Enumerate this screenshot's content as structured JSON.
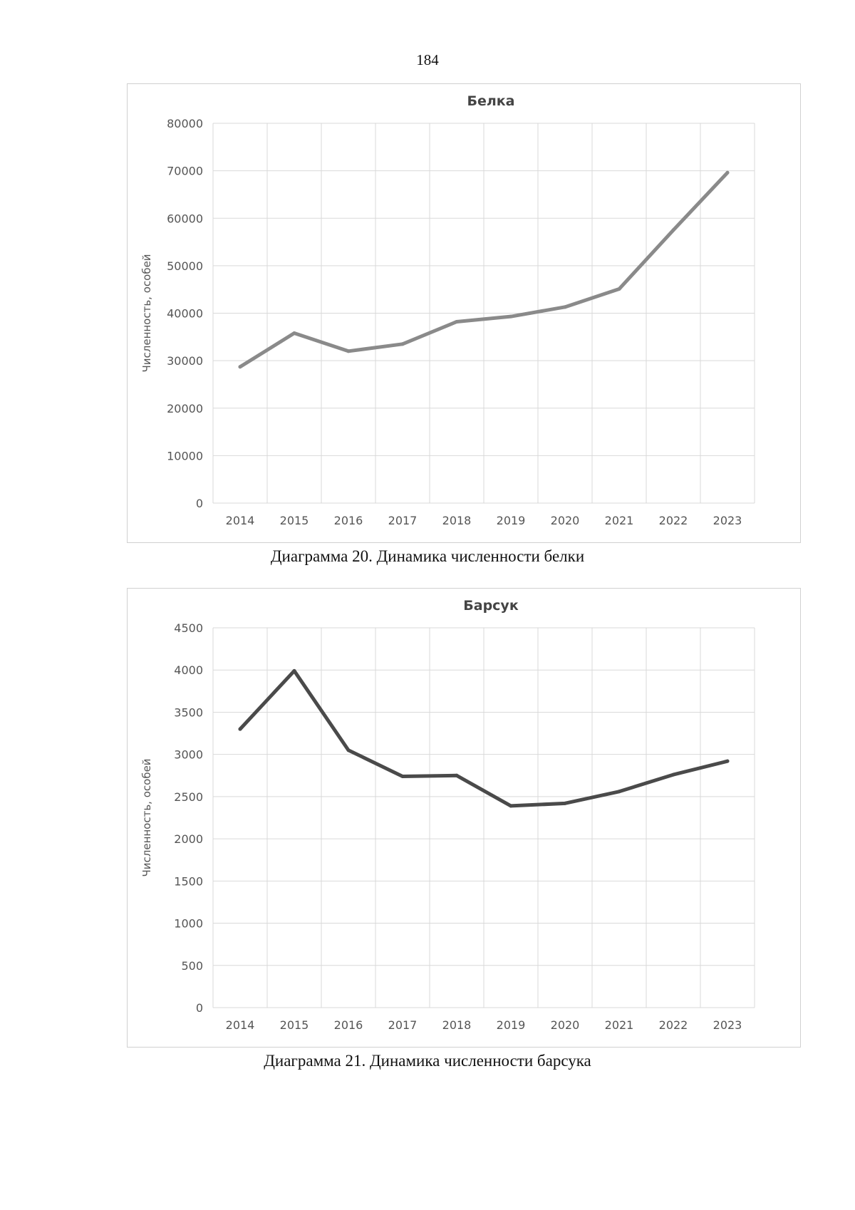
{
  "page": {
    "number": "184"
  },
  "captions": {
    "chart1": "Диаграмма 20. Динамика численности белки",
    "chart2": "Диаграмма 21. Динамика численности барсука"
  },
  "chart_data": [
    {
      "type": "line",
      "title": "Белка",
      "xlabel": "",
      "ylabel": "Численность, особей",
      "categories": [
        "2014",
        "2015",
        "2016",
        "2017",
        "2018",
        "2019",
        "2020",
        "2021",
        "2022",
        "2023"
      ],
      "series": [
        {
          "name": "Белка",
          "values": [
            28700,
            35800,
            32000,
            33500,
            38200,
            39300,
            41300,
            45100,
            57500,
            69600
          ],
          "color": "#8a8a8a"
        }
      ],
      "ylim": [
        0,
        80000
      ],
      "yticks": [
        "0",
        "10000",
        "20000",
        "30000",
        "40000",
        "50000",
        "60000",
        "70000",
        "80000"
      ],
      "grid": true,
      "legend": "none"
    },
    {
      "type": "line",
      "title": "Барсук",
      "xlabel": "",
      "ylabel": "Численность, особей",
      "categories": [
        "2014",
        "2015",
        "2016",
        "2017",
        "2018",
        "2019",
        "2020",
        "2021",
        "2022",
        "2023"
      ],
      "series": [
        {
          "name": "Барсук",
          "values": [
            3300,
            3990,
            3050,
            2740,
            2750,
            2390,
            2420,
            2560,
            2760,
            2920
          ],
          "color": "#4a4a4a"
        }
      ],
      "ylim": [
        0,
        4500
      ],
      "yticks": [
        "0",
        "500",
        "1000",
        "1500",
        "2000",
        "2500",
        "3000",
        "3500",
        "4000",
        "4500"
      ],
      "grid": true,
      "legend": "none"
    }
  ]
}
